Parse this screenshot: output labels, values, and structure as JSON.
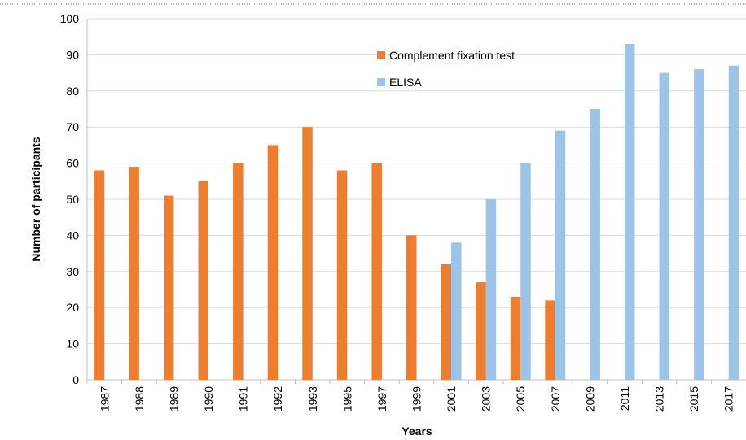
{
  "chart_data": {
    "type": "bar",
    "x_label": "Years",
    "y_label": "Number of participants",
    "categories": [
      "1987",
      "1988",
      "1989",
      "1990",
      "1991",
      "1992",
      "1993",
      "1995",
      "1997",
      "1999",
      "2001",
      "2003",
      "2005",
      "2007",
      "2009",
      "2011",
      "2013",
      "2015",
      "2017"
    ],
    "series": [
      {
        "name": "Complement fixation test",
        "color": "#ed7d31",
        "values": [
          58,
          59,
          51,
          55,
          60,
          65,
          70,
          58,
          60,
          40,
          32,
          27,
          23,
          22,
          null,
          null,
          null,
          null,
          null
        ]
      },
      {
        "name": "ELISA",
        "color": "#9dc3e6",
        "values": [
          null,
          null,
          null,
          null,
          null,
          null,
          null,
          null,
          null,
          null,
          38,
          50,
          60,
          69,
          75,
          93,
          85,
          86,
          87
        ]
      }
    ],
    "ylim": [
      0,
      100
    ],
    "yticks": [
      0,
      10,
      20,
      30,
      40,
      50,
      60,
      70,
      80,
      90,
      100
    ],
    "grid": true,
    "legend": "top-center"
  }
}
